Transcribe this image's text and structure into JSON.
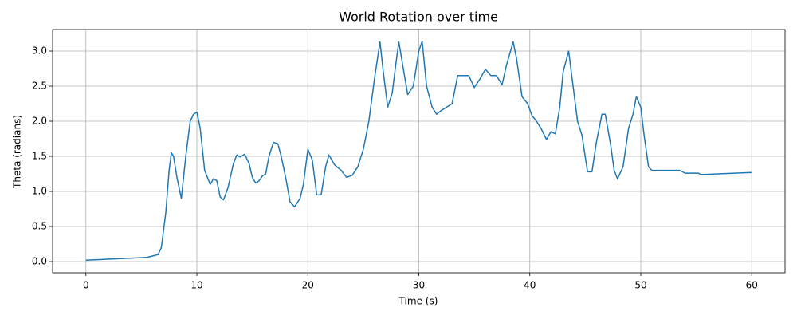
{
  "chart_data": {
    "type": "line",
    "title": "World Rotation over time",
    "x_label": "Time (s)",
    "y_label": "Theta (radians)",
    "x": [
      0,
      5.5,
      6,
      6.5,
      6.8,
      7.2,
      7.5,
      7.7,
      7.9,
      8.2,
      8.6,
      9,
      9.4,
      9.7,
      10,
      10.3,
      10.7,
      11.2,
      11.5,
      11.8,
      12.1,
      12.4,
      12.8,
      13.3,
      13.6,
      13.9,
      14.3,
      14.7,
      15,
      15.3,
      15.6,
      15.9,
      16.2,
      16.5,
      16.9,
      17.3,
      17.6,
      18,
      18.4,
      18.8,
      19.3,
      19.6,
      20,
      20.4,
      20.8,
      21.2,
      21.6,
      21.9,
      22.4,
      23,
      23.5,
      24,
      24.5,
      25,
      25.5,
      26,
      26.5,
      26.8,
      27.2,
      27.6,
      28,
      28.2,
      28.6,
      29,
      29.5,
      30,
      30.3,
      30.7,
      31.2,
      31.6,
      32,
      32.5,
      33,
      33.5,
      34,
      34.5,
      35,
      35.5,
      36,
      36.5,
      37,
      37.5,
      37.9,
      38.5,
      38.8,
      39.3,
      39.8,
      40.2,
      40.6,
      41,
      41.5,
      41.9,
      42.3,
      42.7,
      43,
      43.5,
      43.9,
      44.3,
      44.7,
      45.2,
      45.6,
      46,
      46.5,
      46.8,
      47.3,
      47.6,
      47.9,
      48.4,
      48.9,
      49.3,
      49.6,
      50,
      50.3,
      50.7,
      51,
      53.5,
      54,
      55.2,
      55.4,
      60
    ],
    "values": [
      0.02,
      0.06,
      0.08,
      0.1,
      0.2,
      0.7,
      1.3,
      1.55,
      1.5,
      1.2,
      0.9,
      1.5,
      2.0,
      2.1,
      2.13,
      1.9,
      1.3,
      1.1,
      1.18,
      1.15,
      0.92,
      0.88,
      1.05,
      1.4,
      1.52,
      1.49,
      1.53,
      1.4,
      1.2,
      1.12,
      1.15,
      1.22,
      1.25,
      1.5,
      1.7,
      1.68,
      1.5,
      1.2,
      0.85,
      0.78,
      0.9,
      1.1,
      1.6,
      1.45,
      0.95,
      0.95,
      1.35,
      1.52,
      1.38,
      1.3,
      1.2,
      1.23,
      1.35,
      1.6,
      2.0,
      2.6,
      3.13,
      2.7,
      2.2,
      2.4,
      2.9,
      3.13,
      2.75,
      2.38,
      2.5,
      3.0,
      3.14,
      2.5,
      2.2,
      2.1,
      2.15,
      2.2,
      2.25,
      2.65,
      2.65,
      2.65,
      2.48,
      2.6,
      2.74,
      2.65,
      2.65,
      2.52,
      2.8,
      3.13,
      2.9,
      2.35,
      2.25,
      2.08,
      2.0,
      1.9,
      1.74,
      1.85,
      1.82,
      2.2,
      2.7,
      3.0,
      2.5,
      2.0,
      1.8,
      1.28,
      1.28,
      1.7,
      2.1,
      2.1,
      1.65,
      1.3,
      1.18,
      1.35,
      1.9,
      2.1,
      2.35,
      2.2,
      1.8,
      1.35,
      1.3,
      1.3,
      1.26,
      1.26,
      1.24,
      1.27
    ],
    "color": "#1f77b4",
    "xlim": [
      -3,
      63
    ],
    "ylim": [
      -0.159,
      3.307
    ],
    "xticks": [
      0,
      10,
      20,
      30,
      40,
      50,
      60
    ],
    "yticks": [
      {
        "value": 0,
        "label": "0.0"
      },
      0.5,
      {
        "value": 1,
        "label": "1.0"
      },
      1.5,
      {
        "value": 2,
        "label": "2.0"
      },
      2.5,
      {
        "value": 3,
        "label": "3.0"
      }
    ],
    "grid": true
  }
}
